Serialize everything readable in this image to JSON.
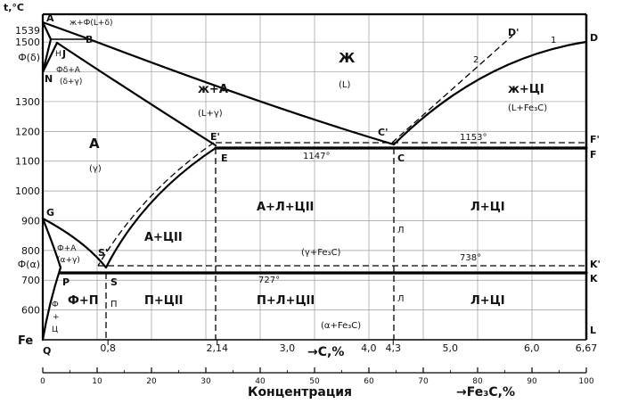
{
  "y_axis_title": "t,°C",
  "y_ticks": [
    {
      "label": "1539",
      "t": 1539
    },
    {
      "label": "1500",
      "t": 1500
    },
    {
      "label": "Ф(δ)",
      "t": 1450
    },
    {
      "label": "1300",
      "t": 1300
    },
    {
      "label": "1200",
      "t": 1200
    },
    {
      "label": "1100",
      "t": 1100
    },
    {
      "label": "1000",
      "t": 1000
    },
    {
      "label": "900",
      "t": 900
    },
    {
      "label": "800",
      "t": 800
    },
    {
      "label": "Ф(α)",
      "t": 755
    },
    {
      "label": "700",
      "t": 700
    },
    {
      "label": "600",
      "t": 600
    }
  ],
  "origin_label": "Fe",
  "carbon_ticks": [
    {
      "label": "0,8",
      "c": 0.8
    },
    {
      "label": "2,14",
      "c": 2.14
    },
    {
      "label": "3,0",
      "c": 3.0
    },
    {
      "label": "4,0",
      "c": 4.0
    },
    {
      "label": "4,3",
      "c": 4.3
    },
    {
      "label": "5,0",
      "c": 5.0
    },
    {
      "label": "6,0",
      "c": 6.0
    },
    {
      "label": "6,67",
      "c": 6.67
    }
  ],
  "carbon_axis_label": "→C,%",
  "fe3c_ticks": [
    "0",
    "10",
    "20",
    "30",
    "40",
    "50",
    "60",
    "70",
    "80",
    "90",
    "100"
  ],
  "concentration_label": "Концентрация",
  "fe3c_axis_label": "→Fe₃C,%",
  "points": {
    "A": "A",
    "B": "B",
    "H": "H",
    "J": "J",
    "N": "N",
    "D": "D",
    "D_prime": "D'",
    "C": "C",
    "C_prime": "C'",
    "E": "E",
    "E_prime": "E'",
    "F": "F",
    "F_prime": "F'",
    "G": "G",
    "S": "S",
    "S_prime": "S'",
    "P": "P",
    "Q": "Q",
    "K": "K",
    "K_prime": "K'",
    "L": "L",
    "curve1": "1",
    "curve2": "2"
  },
  "phases": {
    "liquid_big": "Ж",
    "liquid_sub": "(L)",
    "liq_austenite": "ж+A",
    "liq_austenite_sub": "(L+γ)",
    "liq_cem": "ж+ЦІ",
    "liq_cem_sub": "(L+Fe₃C)",
    "austenite": "A",
    "austenite_sub": "(γ)",
    "top_left": "ж+Ф(L+δ)",
    "delta_aust": "Фδ+A",
    "delta_aust_sub": "(δ+γ)",
    "aust_cem2": "A+ЦІІ",
    "aust_led_cem2": "A+Л+ЦІІ",
    "led_cem1_upper": "Л+ЦІ",
    "gamma_fe3c": "(γ+Fe₃C)",
    "ferrite_aust": "Ф+A",
    "ferrite_aust_sub": "(α+γ)",
    "ferrite_pearl": "Ф+П",
    "pearl_cem2": "П+ЦІІ",
    "pearl_led_cem2": "П+Л+ЦІІ",
    "alpha_fe3c": "(α+Fe₃C)",
    "led_cem1_lower": "Л+ЦІ",
    "ferrite_cem3_a": "Ф",
    "ferrite_cem3_b": "+",
    "ferrite_cem3_c": "Ц",
    "vert_L_upper": "Л",
    "vert_L_lower": "Л",
    "vert_P": "П"
  },
  "isotherms": {
    "t1153": "1153°",
    "t1147": "1147°",
    "t738": "738°",
    "t727": "727°"
  }
}
